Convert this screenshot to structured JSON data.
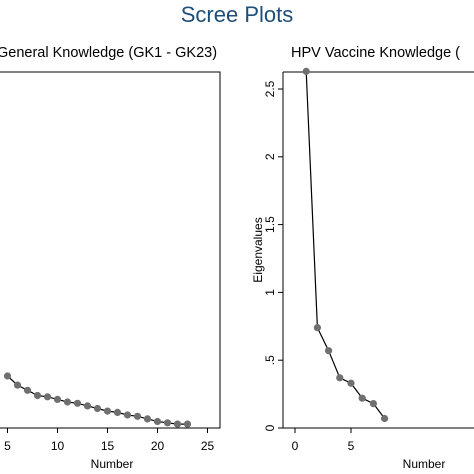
{
  "figure": {
    "title": "Scree Plots"
  },
  "chart_data": [
    {
      "type": "line",
      "title": "General Knowledge (GK1 - GK23)",
      "xlabel": "Number",
      "ylabel": "",
      "x": [
        5,
        6,
        7,
        8,
        9,
        10,
        11,
        12,
        13,
        14,
        15,
        16,
        17,
        18,
        19,
        20,
        21,
        22,
        23
      ],
      "y": [
        0.4,
        0.33,
        0.29,
        0.25,
        0.24,
        0.22,
        0.2,
        0.19,
        0.17,
        0.15,
        0.13,
        0.12,
        0.1,
        0.09,
        0.07,
        0.05,
        0.04,
        0.03,
        0.03
      ],
      "xticks": [
        "5",
        "10",
        "15",
        "20",
        "25"
      ],
      "grid": false,
      "marker_color": "#707070",
      "line_color": "#000000"
    },
    {
      "type": "line",
      "title": "HPV Vaccine Knowledge (",
      "xlabel": "Number",
      "ylabel": "Eigenvalues",
      "x": [
        1,
        2,
        3,
        4,
        5,
        6,
        7,
        8
      ],
      "y": [
        2.63,
        0.74,
        0.57,
        0.37,
        0.33,
        0.22,
        0.18,
        0.07
      ],
      "xticks": [
        "0",
        "5"
      ],
      "yticks": [
        "0",
        ".5",
        "1",
        "1.5",
        "2",
        "2.5"
      ],
      "grid": false,
      "marker_color": "#707070",
      "line_color": "#000000"
    }
  ]
}
